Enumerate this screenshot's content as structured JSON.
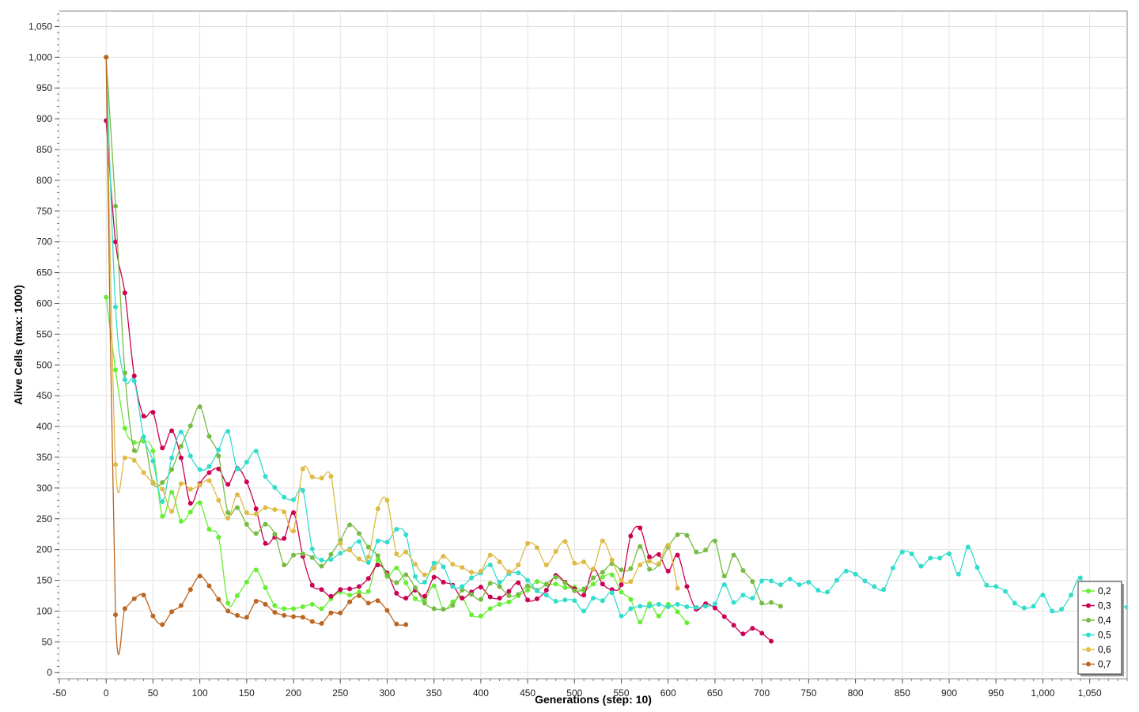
{
  "chart_data": {
    "type": "line",
    "xlabel": "Generations (step: 10)",
    "ylabel": "Alive Cells (max: 1000)",
    "xlim": [
      -50,
      1090
    ],
    "ylim": [
      -10,
      1075
    ],
    "x_ticks": [
      "-50",
      "0",
      "50",
      "100",
      "150",
      "200",
      "250",
      "300",
      "350",
      "400",
      "450",
      "500",
      "550",
      "600",
      "650",
      "700",
      "750",
      "800",
      "850",
      "900",
      "950",
      "1,000",
      "1,050"
    ],
    "x_tick_values": [
      -50,
      0,
      50,
      100,
      150,
      200,
      250,
      300,
      350,
      400,
      450,
      500,
      550,
      600,
      650,
      700,
      750,
      800,
      850,
      900,
      950,
      1000,
      1050
    ],
    "y_ticks": [
      "0",
      "50",
      "100",
      "150",
      "200",
      "250",
      "300",
      "350",
      "400",
      "450",
      "500",
      "550",
      "600",
      "650",
      "700",
      "750",
      "800",
      "850",
      "900",
      "950",
      "1,000",
      "1,050"
    ],
    "y_tick_values": [
      0,
      50,
      100,
      150,
      200,
      250,
      300,
      350,
      400,
      450,
      500,
      550,
      600,
      650,
      700,
      750,
      800,
      850,
      900,
      950,
      1000,
      1050
    ],
    "grid": true,
    "legend_position": "bottom-right",
    "x_step": 10,
    "series": [
      {
        "name": "0,2",
        "color": "#66ee33",
        "values": [
          610,
          492,
          397,
          374,
          376,
          360,
          254,
          293,
          246,
          261,
          276,
          233,
          220,
          113,
          125,
          147,
          167,
          138,
          109,
          104,
          104,
          107,
          111,
          104,
          120,
          131,
          126,
          131,
          132,
          183,
          156,
          170,
          146,
          120,
          118,
          141,
          103,
          115,
          122,
          94,
          92,
          104,
          111,
          115,
          125,
          134,
          148,
          143,
          144,
          138,
          139,
          133,
          144,
          155,
          159,
          131,
          119,
          82,
          112,
          92,
          111,
          99,
          81
        ]
      },
      {
        "name": "0,3",
        "color": "#cc0055",
        "values": [
          897,
          700,
          617,
          482,
          417,
          423,
          365,
          393,
          349,
          275,
          307,
          325,
          331,
          306,
          332,
          310,
          266,
          210,
          220,
          218,
          260,
          189,
          142,
          135,
          124,
          135,
          136,
          140,
          153,
          175,
          162,
          129,
          121,
          134,
          124,
          155,
          147,
          142,
          121,
          131,
          139,
          123,
          121,
          132,
          146,
          118,
          120,
          134,
          158,
          147,
          136,
          126,
          168,
          144,
          135,
          143,
          222,
          235,
          188,
          192,
          165,
          191,
          140,
          103,
          112,
          105,
          91,
          77,
          63,
          72,
          64,
          51
        ]
      },
      {
        "name": "0,4",
        "color": "#77bb44",
        "values": [
          1000,
          758,
          487,
          361,
          383,
          308,
          309,
          330,
          368,
          401,
          432,
          384,
          352,
          260,
          268,
          241,
          226,
          241,
          225,
          175,
          191,
          193,
          187,
          173,
          192,
          215,
          240,
          226,
          204,
          190,
          159,
          146,
          159,
          138,
          113,
          104,
          103,
          109,
          134,
          127,
          119,
          145,
          140,
          125,
          127,
          141,
          134,
          144,
          155,
          146,
          133,
          136,
          154,
          163,
          177,
          167,
          169,
          205,
          168,
          176,
          204,
          224,
          223,
          196,
          199,
          214,
          157,
          191,
          166,
          148,
          113,
          114,
          108
        ]
      },
      {
        "name": "0,5",
        "color": "#33ddcc",
        "values": [
          1000,
          594,
          476,
          474,
          383,
          344,
          278,
          349,
          391,
          352,
          330,
          335,
          362,
          392,
          331,
          342,
          360,
          319,
          301,
          285,
          281,
          296,
          201,
          183,
          184,
          194,
          201,
          213,
          179,
          214,
          212,
          233,
          224,
          156,
          147,
          178,
          172,
          140,
          140,
          154,
          162,
          175,
          147,
          161,
          162,
          150,
          133,
          126,
          116,
          118,
          117,
          100,
          121,
          117,
          130,
          92,
          104,
          108,
          108,
          111,
          107,
          111,
          107,
          106,
          108,
          112,
          143,
          114,
          126,
          121,
          149,
          149,
          143,
          152,
          143,
          147,
          134,
          131,
          150,
          165,
          160,
          149,
          140,
          135,
          170,
          196,
          193,
          173,
          186,
          186,
          193,
          160,
          204,
          171,
          142,
          140,
          132,
          113,
          105,
          108,
          126,
          100,
          103,
          126,
          154,
          105,
          103,
          111,
          111,
          106
        ]
      },
      {
        "name": "0,6",
        "color": "#ddbb44",
        "values": [
          1000,
          338,
          349,
          345,
          325,
          309,
          298,
          262,
          307,
          298,
          305,
          312,
          280,
          251,
          289,
          260,
          258,
          268,
          265,
          261,
          230,
          331,
          318,
          316,
          319,
          210,
          199,
          185,
          188,
          266,
          280,
          193,
          196,
          176,
          159,
          170,
          189,
          176,
          171,
          163,
          165,
          191,
          180,
          164,
          175,
          210,
          203,
          175,
          197,
          213,
          178,
          180,
          168,
          214,
          183,
          150,
          148,
          175,
          181,
          177,
          207,
          137
        ]
      },
      {
        "name": "0,7",
        "color": "#bb6622",
        "values": [
          1000,
          94,
          104,
          120,
          126,
          92,
          78,
          99,
          109,
          135,
          157,
          141,
          119,
          100,
          93,
          90,
          116,
          111,
          98,
          93,
          91,
          90,
          83,
          80,
          97,
          97,
          115,
          125,
          113,
          117,
          101,
          79,
          78
        ]
      }
    ]
  },
  "legend": {
    "entries": [
      "0,2",
      "0,3",
      "0,4",
      "0,5",
      "0,6",
      "0,7"
    ]
  }
}
